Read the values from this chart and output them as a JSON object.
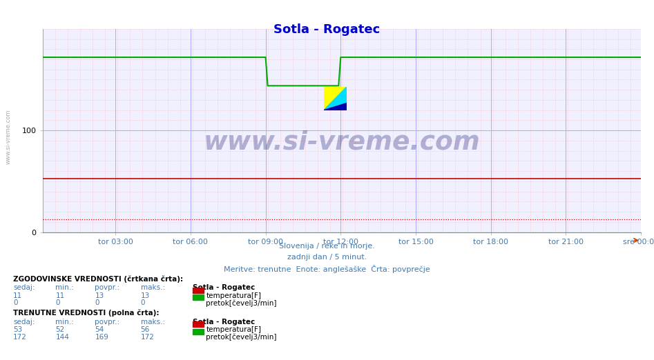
{
  "title": "Sotla - Rogatec",
  "title_color": "#0000cc",
  "title_fontsize": 13,
  "bg_color": "#ffffff",
  "plot_bg_color": "#f0f0ff",
  "xlim": [
    0,
    287
  ],
  "ylim": [
    0,
    200
  ],
  "yticks": [
    0,
    100
  ],
  "xtick_labels": [
    "tor 03:00",
    "tor 06:00",
    "tor 09:00",
    "tor 12:00",
    "tor 15:00",
    "tor 18:00",
    "tor 21:00",
    "sre 00:00"
  ],
  "xtick_positions": [
    35,
    71,
    107,
    143,
    179,
    215,
    251,
    287
  ],
  "subtitle1": "Slovenija / reke in morje.",
  "subtitle2": "zadnji dan / 5 minut.",
  "subtitle3": "Meritve: trenutne  Enote: anglešaške  Črta: povprečje",
  "subtitle_color": "#4477aa",
  "watermark": "www.si-vreme.com",
  "watermark_color": "#1a1a6e",
  "watermark_alpha": 0.3,
  "temp_current_value": 53,
  "temp_min": 52,
  "temp_avg": 54,
  "temp_max": 56,
  "temp_hist_value": 11,
  "temp_hist_min": 11,
  "temp_hist_avg": 13,
  "temp_hist_max": 13,
  "flow_current_value": 172,
  "flow_min": 144,
  "flow_avg": 169,
  "flow_max": 172,
  "flow_hist_value": 0,
  "flow_hist_min": 0,
  "flow_hist_avg": 0,
  "flow_hist_max": 0,
  "temp_line_color": "#cc0000",
  "flow_line_color": "#00aa00",
  "grid_color_major": "#aaaaff",
  "grid_color_minor": "#ffaaaa",
  "legend_text1": "temperatura[F]",
  "legend_text2": "pretok[čevelj3/min]",
  "legend_color1": "#cc0000",
  "legend_color2": "#00aa00",
  "dip_start_idx": 107,
  "dip_end_idx": 143,
  "dip_bottom": 144,
  "flow_base": 172,
  "temp_base": 53,
  "temp_hist_line": 13,
  "flow_hist_line": 0
}
